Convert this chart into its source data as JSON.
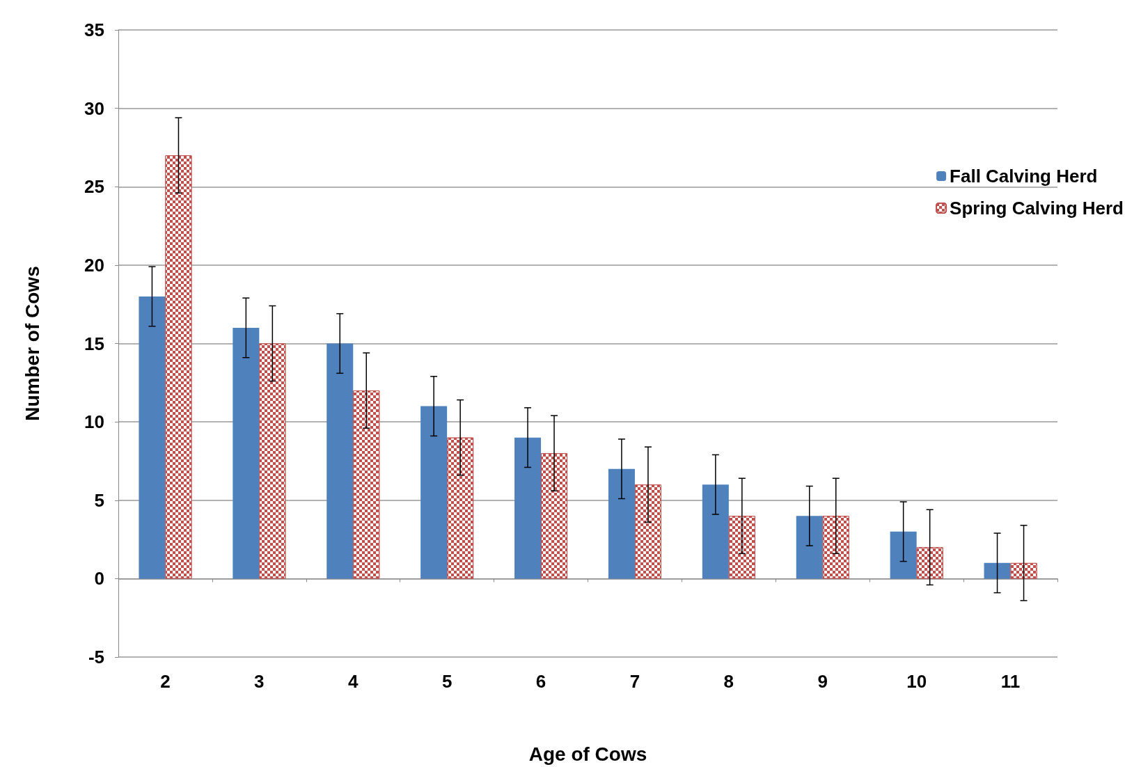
{
  "chart_data": {
    "type": "bar",
    "xlabel": "Age of Cows",
    "ylabel": "Number of Cows",
    "categories": [
      "2",
      "3",
      "4",
      "5",
      "6",
      "7",
      "8",
      "9",
      "10",
      "11"
    ],
    "series": [
      {
        "name": "Fall Calving Herd",
        "color": "#4f81bd",
        "values": [
          18,
          16,
          15,
          11,
          9,
          7,
          6,
          4,
          3,
          1
        ],
        "errors": [
          1.9,
          1.9,
          1.9,
          1.9,
          1.9,
          1.9,
          1.9,
          1.9,
          1.9,
          1.9
        ]
      },
      {
        "name": "Spring Calving Herd",
        "color": "#c0504d",
        "values": [
          27,
          15,
          12,
          9,
          8,
          6,
          4,
          4,
          2,
          1
        ],
        "errors": [
          2.4,
          2.4,
          2.4,
          2.4,
          2.4,
          2.4,
          2.4,
          2.4,
          2.4,
          2.4
        ]
      }
    ],
    "ylim": [
      -5,
      35
    ],
    "yticks": [
      -5,
      0,
      5,
      10,
      15,
      20,
      25,
      30,
      35
    ],
    "grid": "y",
    "legend": "right"
  }
}
